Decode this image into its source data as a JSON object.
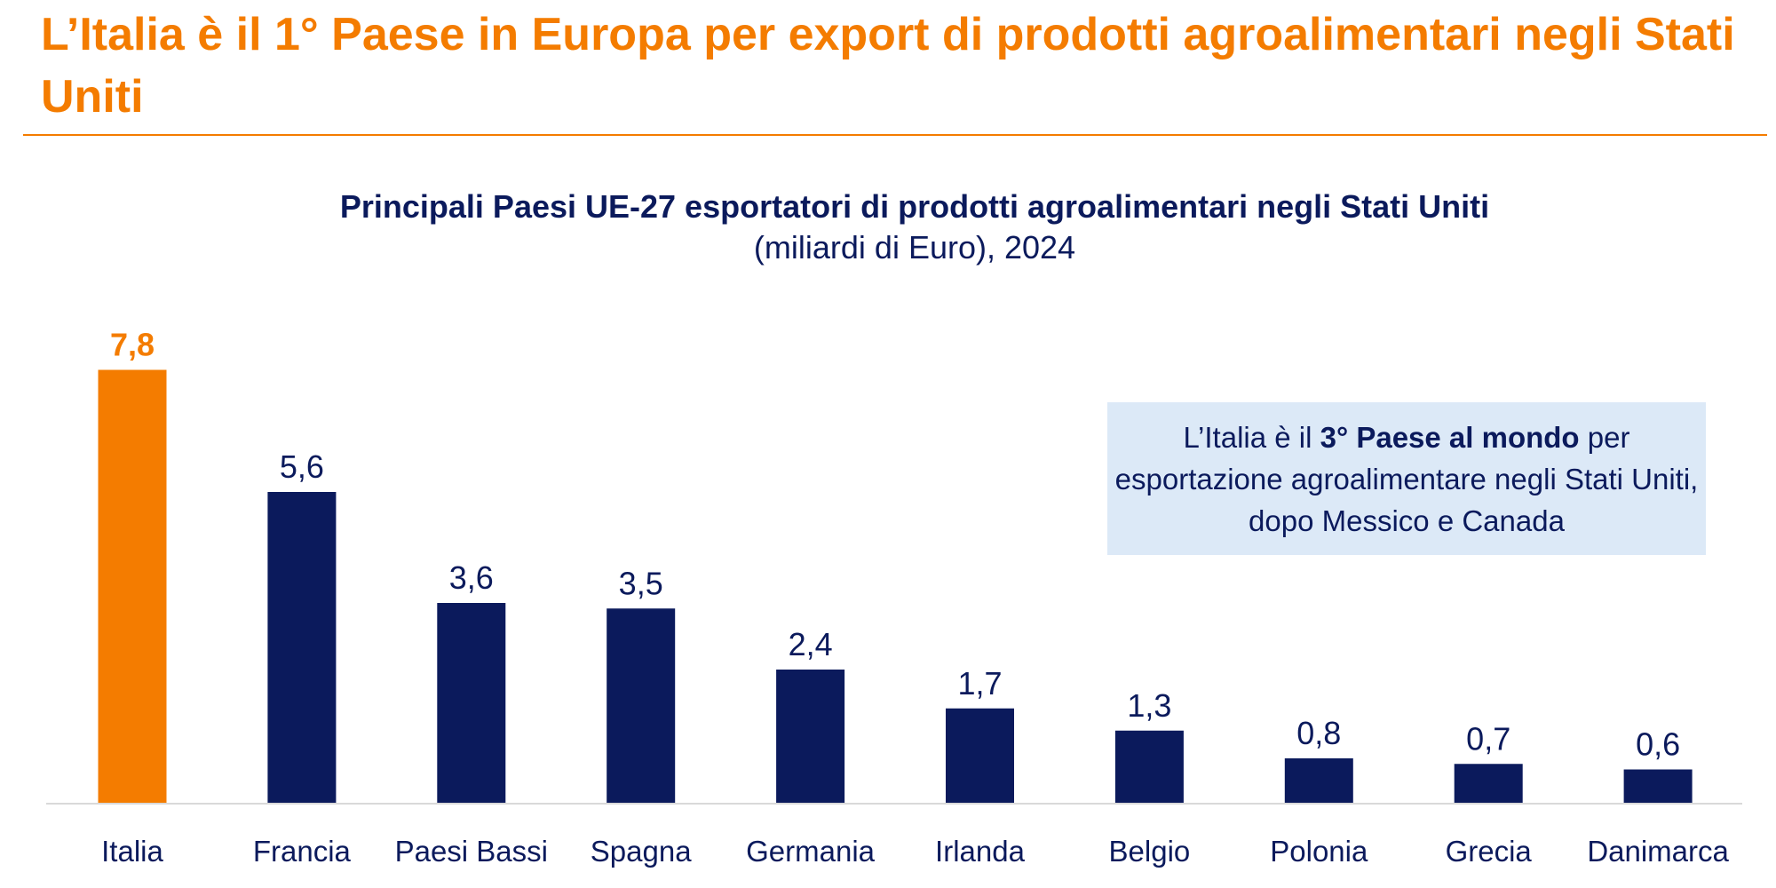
{
  "title": "L’Italia è il 1° Paese in Europa per export di prodotti agroalimentari negli Stati Uniti",
  "chart_data": {
    "type": "bar",
    "title": "Principali Paesi UE-27 esportatori di prodotti agroalimentari negli Stati Uniti",
    "subtitle": "(miliardi di Euro), 2024",
    "categories": [
      "Italia",
      "Francia",
      "Paesi Bassi",
      "Spagna",
      "Germania",
      "Irlanda",
      "Belgio",
      "Polonia",
      "Grecia",
      "Danimarca"
    ],
    "values": [
      7.8,
      5.6,
      3.6,
      3.5,
      2.4,
      1.7,
      1.3,
      0.8,
      0.7,
      0.6
    ],
    "value_labels": [
      "7,8",
      "5,6",
      "3,6",
      "3,5",
      "2,4",
      "1,7",
      "1,3",
      "0,8",
      "0,7",
      "0,6"
    ],
    "ylim": [
      0,
      8
    ],
    "grid": false,
    "colors": {
      "highlight": "#f47c00",
      "default": "#0b1a5c"
    },
    "highlight_category": "Italia"
  },
  "note": {
    "pre": "L’Italia è il ",
    "bold": "3° Paese al mondo",
    "post": " per esportazione agroalimentare negli Stati Uniti, dopo Messico e Canada"
  }
}
